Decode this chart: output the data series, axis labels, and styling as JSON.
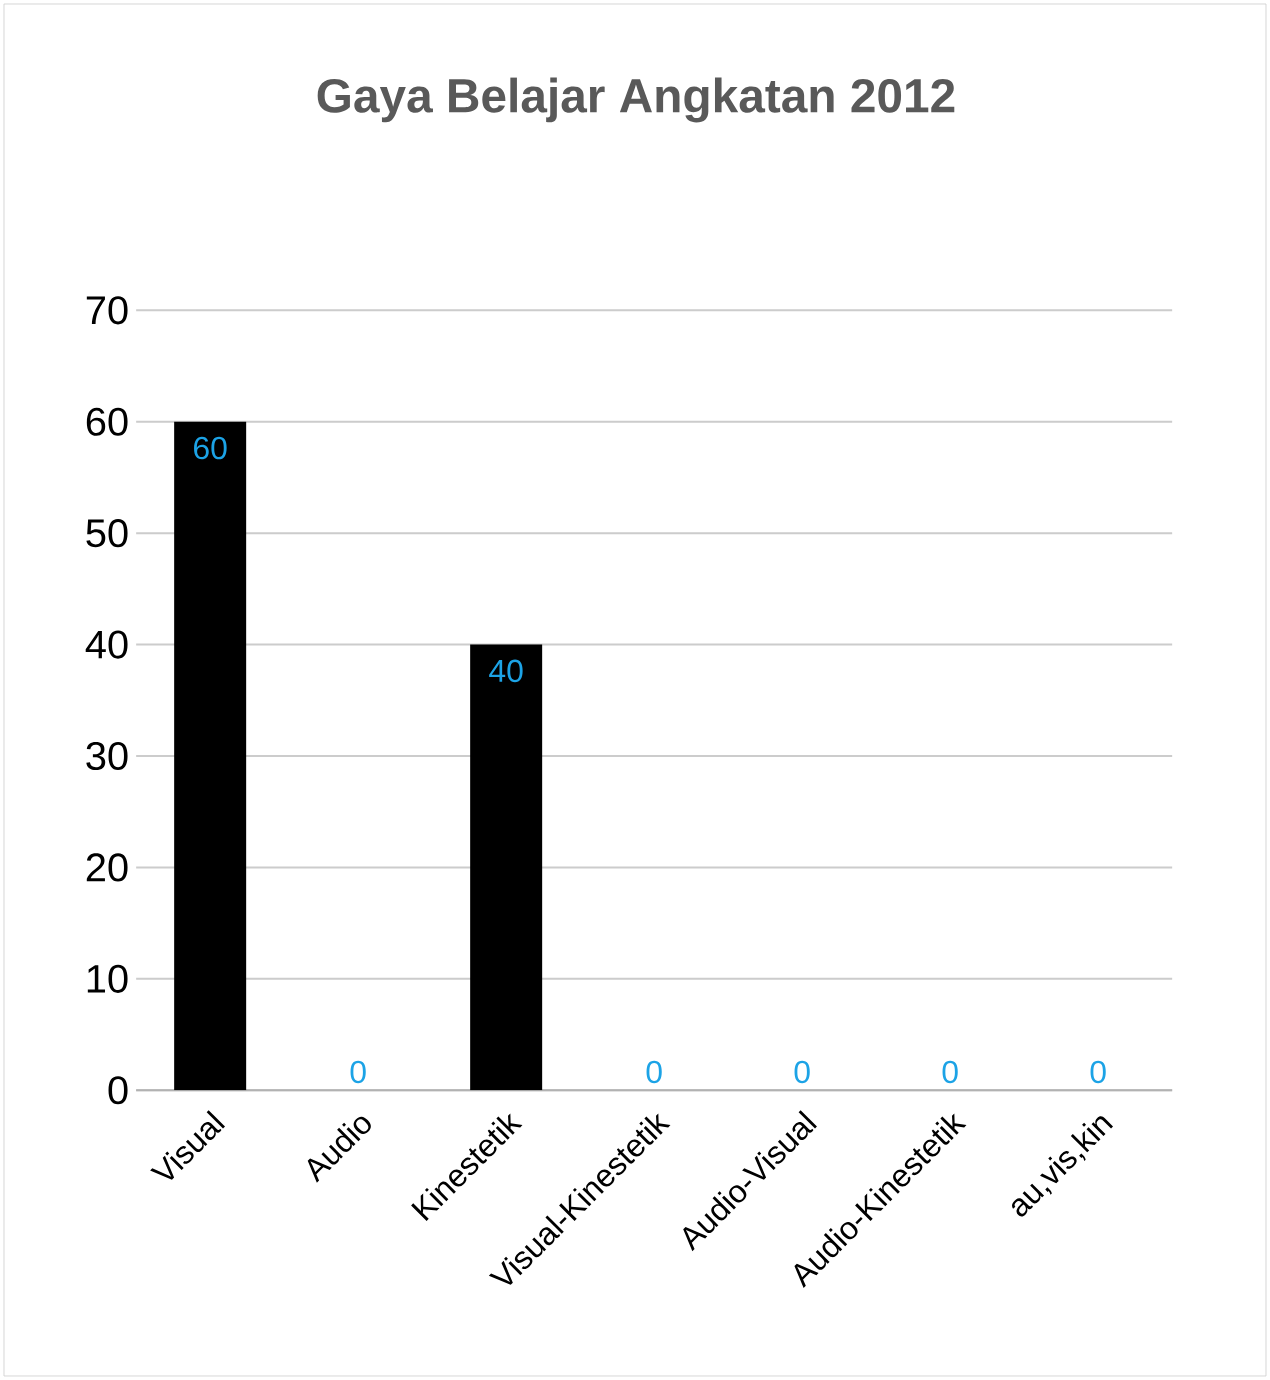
{
  "chart_data": {
    "type": "bar",
    "title": "Gaya Belajar Angkatan 2012",
    "categories": [
      "Visual",
      "Audio",
      "Kinestetik",
      "Visual-Kinestetik",
      "Audio-Visual",
      "Audio-Kinestetik",
      "au,vis,kin"
    ],
    "values": [
      60,
      0,
      40,
      0,
      0,
      0,
      0
    ],
    "color": "#000000",
    "ylim": [
      0,
      70
    ],
    "yticks": [
      0,
      10,
      20,
      30,
      40,
      50,
      60,
      70
    ],
    "grid": "y",
    "data_labels": true
  }
}
